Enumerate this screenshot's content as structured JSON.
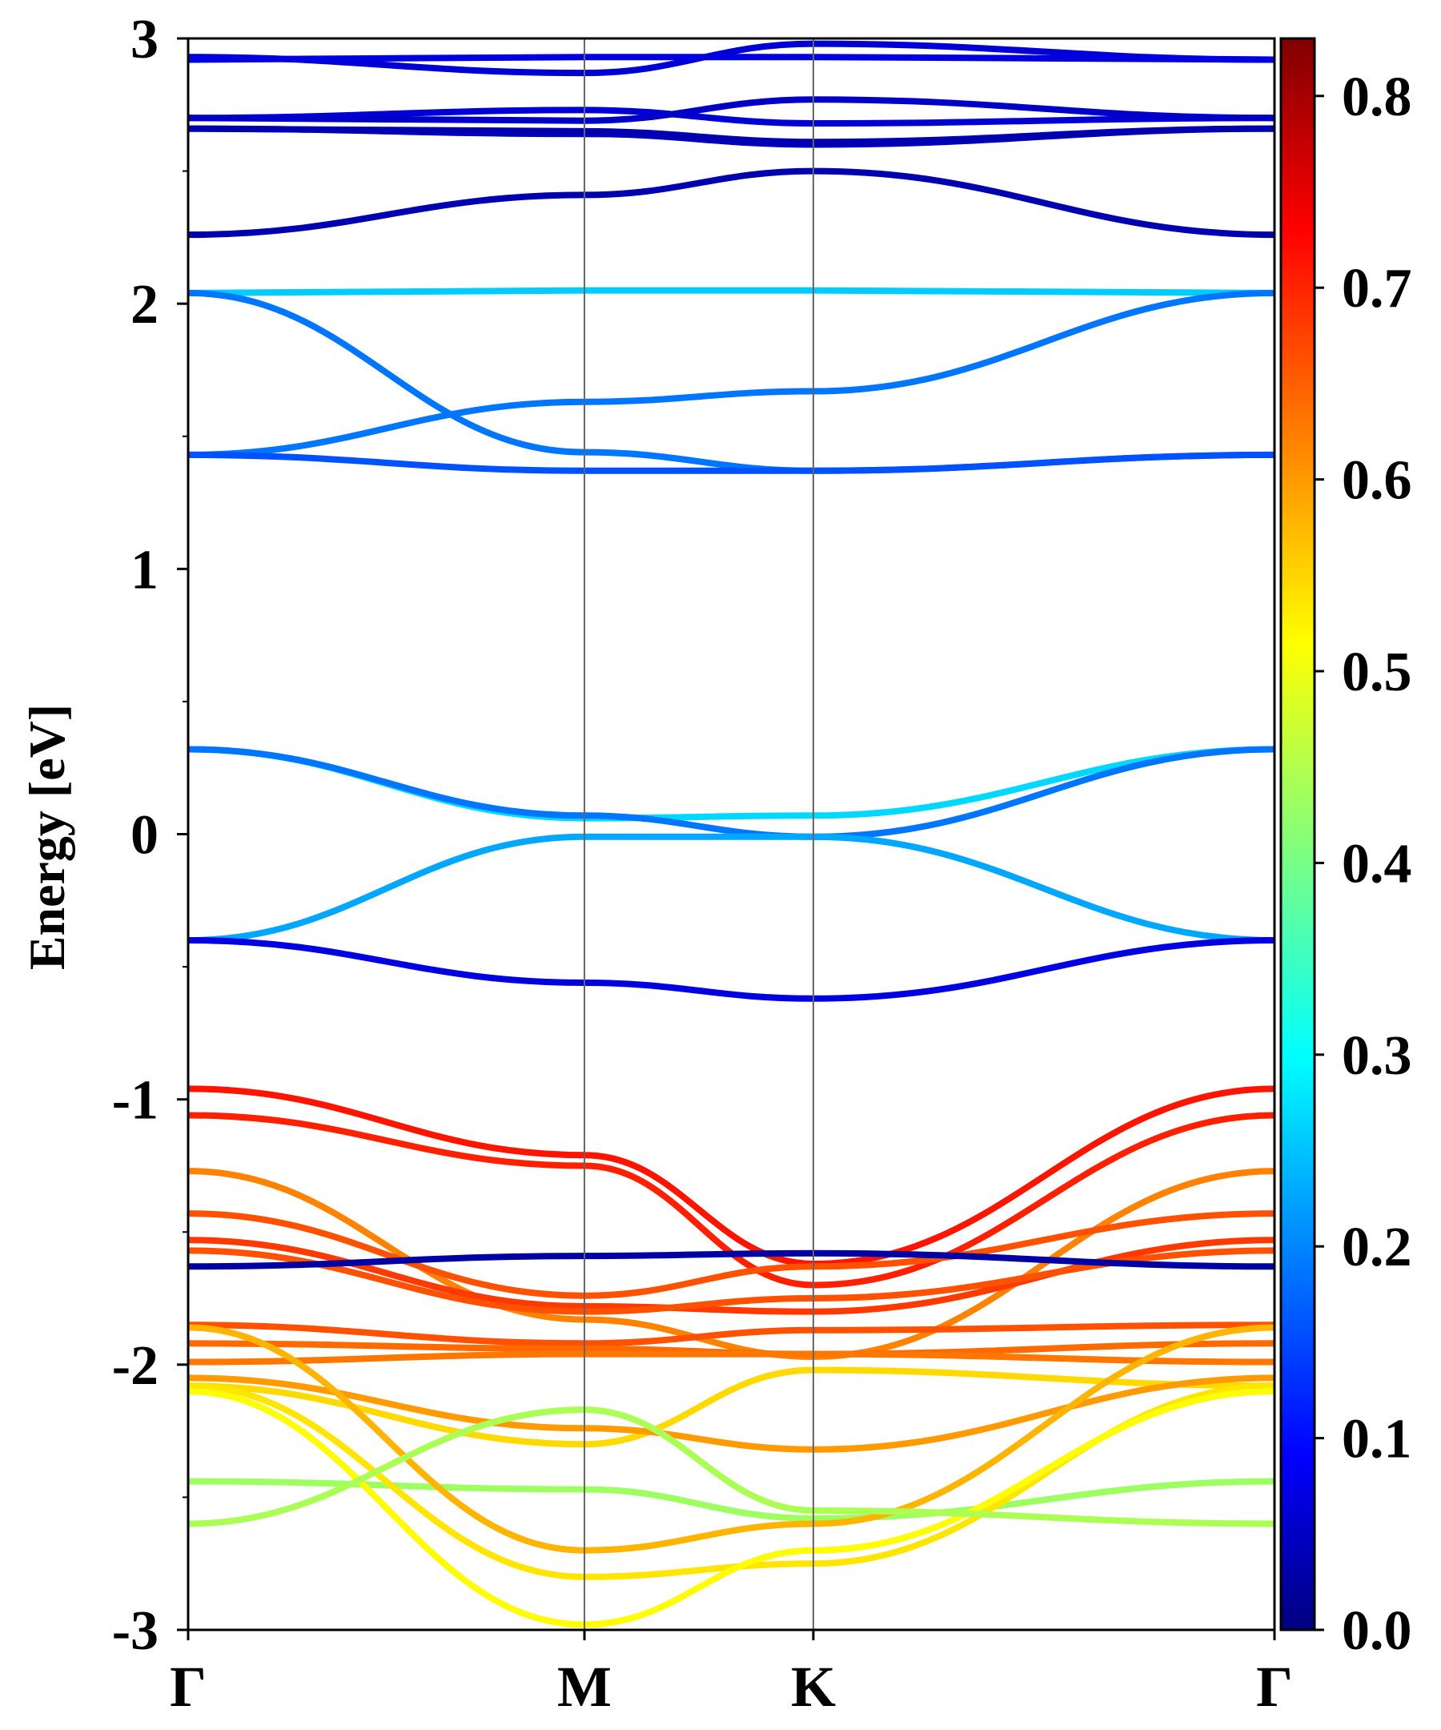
{
  "chart_data": {
    "type": "line",
    "title": "",
    "xlabel": "",
    "ylabel": "Energy [eV]",
    "ylim": [
      -3,
      3
    ],
    "k_path": [
      {
        "label": "Γ",
        "k": 0.0
      },
      {
        "label": "M",
        "k": 0.3648
      },
      {
        "label": "K",
        "k": 0.5755
      },
      {
        "label": "Γ",
        "k": 1.0
      }
    ],
    "xlim": [
      0,
      1
    ],
    "y_ticks": [
      -3,
      -2,
      -1,
      0,
      1,
      2,
      3
    ],
    "y_tick_labels": [
      "-3",
      "-2",
      "-1",
      "0",
      "1",
      "2",
      "3"
    ],
    "color_variable": "band weight (projection)",
    "colorbar": {
      "colormap": "jet",
      "range": [
        0.0,
        0.83
      ],
      "ticks": [
        0.0,
        0.1,
        0.2,
        0.3,
        0.4,
        0.5,
        0.6,
        0.7,
        0.8
      ],
      "tick_labels": [
        "0.0",
        "0.1",
        "0.2",
        "0.3",
        "0.4",
        "0.5",
        "0.6",
        "0.7",
        "0.8"
      ]
    },
    "grid": false,
    "legend": "none",
    "bands": [
      {
        "weight": 0.07,
        "points": [
          [
            0,
            2.93
          ],
          [
            0.3648,
            2.87
          ],
          [
            0.5755,
            2.98
          ],
          [
            1,
            2.92
          ]
        ]
      },
      {
        "weight": 0.08,
        "points": [
          [
            0,
            2.92
          ],
          [
            0.3648,
            2.93
          ],
          [
            0.5755,
            2.93
          ],
          [
            1,
            2.92
          ]
        ]
      },
      {
        "weight": 0.07,
        "points": [
          [
            0,
            2.7
          ],
          [
            0.3648,
            2.73
          ],
          [
            0.5755,
            2.68
          ],
          [
            1,
            2.7
          ]
        ]
      },
      {
        "weight": 0.06,
        "points": [
          [
            0,
            2.7
          ],
          [
            0.3648,
            2.69
          ],
          [
            0.5755,
            2.77
          ],
          [
            1,
            2.7
          ]
        ]
      },
      {
        "weight": 0.05,
        "points": [
          [
            0,
            2.66
          ],
          [
            0.3648,
            2.64
          ],
          [
            0.5755,
            2.6
          ],
          [
            1,
            2.66
          ]
        ]
      },
      {
        "weight": 0.04,
        "points": [
          [
            0,
            2.66
          ],
          [
            0.3648,
            2.65
          ],
          [
            0.5755,
            2.61
          ],
          [
            1,
            2.66
          ]
        ]
      },
      {
        "weight": 0.04,
        "points": [
          [
            0,
            2.26
          ],
          [
            0.3648,
            2.41
          ],
          [
            0.5755,
            2.5
          ],
          [
            1,
            2.26
          ]
        ]
      },
      {
        "weight": 0.27,
        "points": [
          [
            0,
            2.04
          ],
          [
            0.3648,
            2.05
          ],
          [
            0.5755,
            2.05
          ],
          [
            1,
            2.04
          ]
        ]
      },
      {
        "weight": 0.2,
        "points": [
          [
            0,
            2.04
          ],
          [
            0.3648,
            1.44
          ],
          [
            0.5755,
            1.37
          ],
          [
            1,
            1.43
          ]
        ]
      },
      {
        "weight": 0.2,
        "points": [
          [
            0,
            1.43
          ],
          [
            0.3648,
            1.63
          ],
          [
            0.5755,
            1.67
          ],
          [
            1,
            2.04
          ]
        ]
      },
      {
        "weight": 0.17,
        "points": [
          [
            0,
            1.43
          ],
          [
            0.3648,
            1.37
          ],
          [
            0.5755,
            1.37
          ],
          [
            1,
            1.43
          ]
        ]
      },
      {
        "weight": 0.28,
        "points": [
          [
            0,
            0.32
          ],
          [
            0.3648,
            0.06
          ],
          [
            0.5755,
            0.07
          ],
          [
            1,
            0.32
          ]
        ]
      },
      {
        "weight": 0.2,
        "points": [
          [
            0,
            0.32
          ],
          [
            0.3648,
            0.07
          ],
          [
            0.5755,
            -0.01
          ],
          [
            1,
            0.32
          ]
        ]
      },
      {
        "weight": 0.24,
        "points": [
          [
            0,
            -0.4
          ],
          [
            0.3648,
            -0.01
          ],
          [
            0.5755,
            -0.01
          ],
          [
            1,
            -0.4
          ]
        ]
      },
      {
        "weight": 0.08,
        "points": [
          [
            0,
            -0.4
          ],
          [
            0.3648,
            -0.56
          ],
          [
            0.5755,
            -0.62
          ],
          [
            1,
            -0.4
          ]
        ]
      },
      {
        "weight": 0.71,
        "points": [
          [
            0,
            -0.96
          ],
          [
            0.3648,
            -1.21
          ],
          [
            0.5755,
            -1.62
          ],
          [
            1,
            -0.96
          ]
        ]
      },
      {
        "weight": 0.7,
        "points": [
          [
            0,
            -1.06
          ],
          [
            0.3648,
            -1.25
          ],
          [
            0.5755,
            -1.7
          ],
          [
            1,
            -1.06
          ]
        ]
      },
      {
        "weight": 0.62,
        "points": [
          [
            0,
            -1.27
          ],
          [
            0.3648,
            -1.83
          ],
          [
            0.5755,
            -1.97
          ],
          [
            1,
            -1.27
          ]
        ]
      },
      {
        "weight": 0.66,
        "points": [
          [
            0,
            -1.43
          ],
          [
            0.3648,
            -1.74
          ],
          [
            0.5755,
            -1.63
          ],
          [
            1,
            -1.43
          ]
        ]
      },
      {
        "weight": 0.68,
        "points": [
          [
            0,
            -1.53
          ],
          [
            0.3648,
            -1.78
          ],
          [
            0.5755,
            -1.8
          ],
          [
            1,
            -1.53
          ]
        ]
      },
      {
        "weight": 0.66,
        "points": [
          [
            0,
            -1.57
          ],
          [
            0.3648,
            -1.8
          ],
          [
            0.5755,
            -1.75
          ],
          [
            1,
            -1.57
          ]
        ]
      },
      {
        "weight": 0.03,
        "points": [
          [
            0,
            -1.63
          ],
          [
            0.3648,
            -1.59
          ],
          [
            0.5755,
            -1.58
          ],
          [
            1,
            -1.63
          ]
        ]
      },
      {
        "weight": 0.66,
        "points": [
          [
            0,
            -1.85
          ],
          [
            0.3648,
            -1.92
          ],
          [
            0.5755,
            -1.87
          ],
          [
            1,
            -1.85
          ]
        ]
      },
      {
        "weight": 0.64,
        "points": [
          [
            0,
            -1.92
          ],
          [
            0.3648,
            -1.94
          ],
          [
            0.5755,
            -1.96
          ],
          [
            1,
            -1.92
          ]
        ]
      },
      {
        "weight": 0.63,
        "points": [
          [
            0,
            -1.99
          ],
          [
            0.3648,
            -1.96
          ],
          [
            0.5755,
            -1.96
          ],
          [
            1,
            -1.99
          ]
        ]
      },
      {
        "weight": 0.55,
        "points": [
          [
            0,
            -2.08
          ],
          [
            0.3648,
            -2.3
          ],
          [
            0.5755,
            -2.02
          ],
          [
            1,
            -2.08
          ]
        ]
      },
      {
        "weight": 0.6,
        "points": [
          [
            0,
            -2.05
          ],
          [
            0.3648,
            -2.24
          ],
          [
            0.5755,
            -2.32
          ],
          [
            1,
            -2.05
          ]
        ]
      },
      {
        "weight": 0.44,
        "points": [
          [
            0,
            -2.44
          ],
          [
            0.3648,
            -2.47
          ],
          [
            0.5755,
            -2.58
          ],
          [
            1,
            -2.44
          ]
        ]
      },
      {
        "weight": 0.58,
        "points": [
          [
            0,
            -1.86
          ],
          [
            0.3648,
            -2.7
          ],
          [
            0.5755,
            -2.6
          ],
          [
            1,
            -1.86
          ]
        ]
      },
      {
        "weight": 0.54,
        "points": [
          [
            0,
            -2.08
          ],
          [
            0.3648,
            -2.8
          ],
          [
            0.5755,
            -2.75
          ],
          [
            1,
            -2.08
          ]
        ]
      },
      {
        "weight": 0.52,
        "points": [
          [
            0,
            -2.1
          ],
          [
            0.3648,
            -2.98
          ],
          [
            0.5755,
            -2.7
          ],
          [
            1,
            -2.1
          ]
        ]
      },
      {
        "weight": 0.45,
        "points": [
          [
            0,
            -2.6
          ],
          [
            0.3648,
            -2.17
          ],
          [
            0.5755,
            -2.55
          ],
          [
            1,
            -2.6
          ]
        ]
      }
    ]
  }
}
